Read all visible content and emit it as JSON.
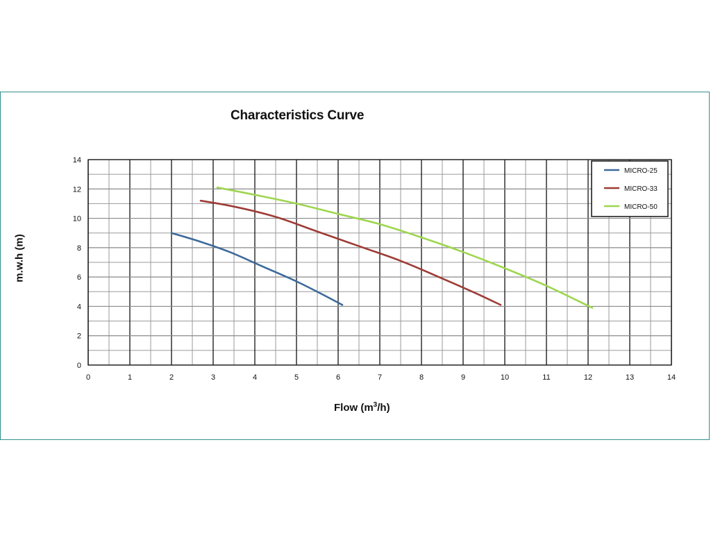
{
  "chart_data": {
    "type": "line",
    "title": "Characteristics Curve",
    "xlabel_main": "Flow (m",
    "xlabel_sup": "3",
    "xlabel_end": "/h)",
    "ylabel": "m.w.h (m)",
    "xlim": [
      0,
      14
    ],
    "ylim": [
      0,
      14
    ],
    "xticks": [
      0,
      1,
      2,
      3,
      4,
      5,
      6,
      7,
      8,
      9,
      10,
      11,
      12,
      13,
      14
    ],
    "yticks": [
      0,
      2,
      4,
      6,
      8,
      10,
      12,
      14
    ],
    "grid": true,
    "legend_position": "top-right",
    "series": [
      {
        "name": "MICRO-25",
        "color": "#3d6a9a",
        "x": [
          2.0,
          2.7,
          3.4,
          4.2,
          5.0,
          5.7,
          6.1
        ],
        "y": [
          9.0,
          8.4,
          7.7,
          6.7,
          5.7,
          4.7,
          4.1
        ]
      },
      {
        "name": "MICRO-33",
        "color": "#9e3b36",
        "x": [
          2.7,
          3.5,
          4.5,
          5.5,
          6.5,
          7.5,
          8.5,
          9.3,
          9.9
        ],
        "y": [
          11.2,
          10.8,
          10.1,
          9.1,
          8.1,
          7.1,
          5.9,
          4.9,
          4.1
        ]
      },
      {
        "name": "MICRO-50",
        "color": "#9ed64e",
        "x": [
          3.1,
          4.0,
          5.0,
          6.0,
          7.0,
          8.0,
          9.0,
          10.0,
          11.0,
          12.1
        ],
        "y": [
          12.1,
          11.6,
          11.0,
          10.3,
          9.6,
          8.7,
          7.7,
          6.6,
          5.4,
          3.9
        ]
      }
    ]
  }
}
